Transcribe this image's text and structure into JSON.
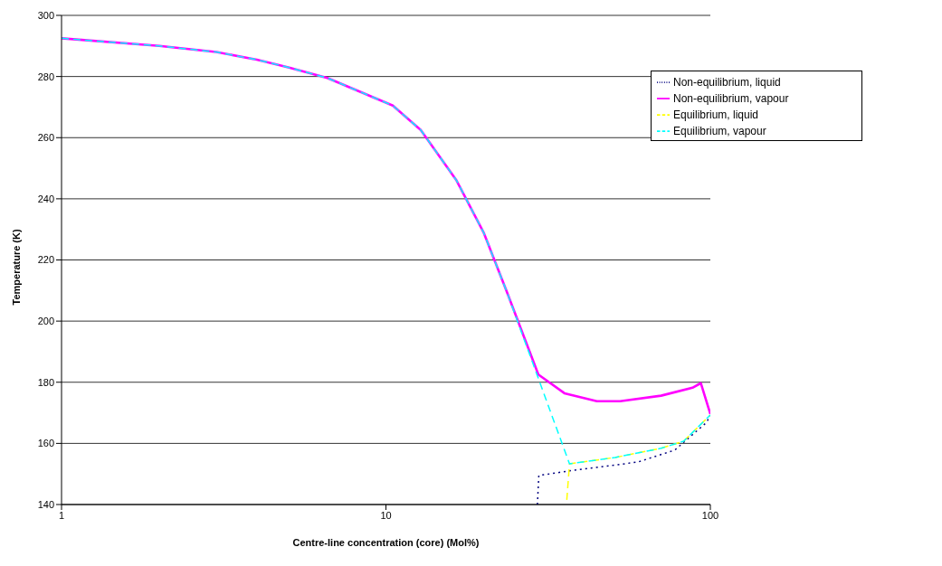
{
  "chart_data": {
    "type": "line",
    "xlabel": "Centre-line concentration (core) (Mol%)",
    "ylabel": "Temperature (K)",
    "log": "x",
    "xlim": [
      1,
      100
    ],
    "xticks": [
      1,
      10,
      100
    ],
    "ylim": [
      140,
      300
    ],
    "yticks": [
      140,
      160,
      180,
      200,
      220,
      240,
      260,
      280,
      300
    ],
    "grid": "y",
    "legend": "top right",
    "marker": "none",
    "series": [
      {
        "name": "Non-equilibrium, liquid",
        "color": "#000080",
        "line_style": "dotted",
        "x": [
          29.3,
          29.6,
          36.8,
          59.8,
          77.7,
          97,
          100
        ],
        "values": [
          140,
          149.5,
          151,
          153.9,
          157.8,
          166.7,
          169
        ]
      },
      {
        "name": "Non-equilibrium, vapour",
        "color": "#ff00ff",
        "line_style": "solid",
        "x": [
          1,
          2,
          3,
          4,
          5,
          6.6,
          10.5,
          12.8,
          16.5,
          20,
          23.5,
          29.5,
          35.5,
          44.7,
          52.7,
          70.5,
          88.1,
          93.5,
          100
        ],
        "values": [
          292.5,
          290,
          288,
          285.5,
          283,
          279.5,
          270.5,
          262.5,
          246,
          229,
          210,
          182.5,
          176.4,
          173.8,
          173.8,
          175.6,
          178.2,
          179.7,
          169.6
        ]
      },
      {
        "name": "Equilibrium, liquid",
        "color": "#ffff00",
        "line_style": "dashed",
        "x": [
          36.1,
          36.8,
          50.9,
          70.5,
          82.7,
          100
        ],
        "values": [
          141.5,
          153.3,
          155.4,
          158.4,
          160.7,
          169.3
        ]
      },
      {
        "name": "Equilibrium, vapour",
        "color": "#00ffff",
        "line_style": "dashed",
        "x": [
          1,
          2,
          3,
          4,
          5,
          6.6,
          10.5,
          12.8,
          16.5,
          20,
          23.5,
          36.8,
          50.9,
          70.5,
          82.7,
          100
        ],
        "values": [
          292.5,
          290,
          288,
          285.5,
          283,
          279.5,
          270.5,
          262.5,
          246,
          229,
          210,
          153.3,
          155.4,
          158.4,
          160.7,
          169.3
        ]
      }
    ]
  }
}
